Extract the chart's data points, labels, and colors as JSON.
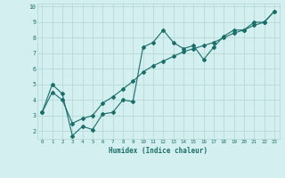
{
  "xlabel": "Humidex (Indice chaleur)",
  "background_color": "#d4efef",
  "grid_color": "#b8d8d8",
  "line_color": "#1a6e6a",
  "xlim": [
    -0.5,
    23.5
  ],
  "ylim": [
    1.5,
    10.2
  ],
  "yticks": [
    2,
    3,
    4,
    5,
    6,
    7,
    8,
    9,
    10
  ],
  "xticks": [
    0,
    1,
    2,
    3,
    4,
    5,
    6,
    7,
    8,
    9,
    10,
    11,
    12,
    13,
    14,
    15,
    16,
    17,
    18,
    19,
    20,
    21,
    22,
    23
  ],
  "line1_x": [
    0,
    1,
    2,
    3,
    4,
    5,
    6,
    7,
    8,
    9,
    10,
    11,
    12,
    13,
    14,
    15,
    16,
    17,
    18,
    19,
    20,
    21,
    22,
    23
  ],
  "line1_y": [
    3.2,
    5.0,
    4.4,
    1.7,
    2.3,
    2.1,
    3.1,
    3.2,
    4.0,
    3.9,
    7.4,
    7.7,
    8.5,
    7.7,
    7.3,
    7.5,
    6.6,
    7.4,
    8.1,
    8.5,
    8.5,
    9.0,
    9.0,
    9.7
  ],
  "line2_x": [
    0,
    1,
    2,
    3,
    4,
    5,
    6,
    7,
    8,
    9,
    10,
    11,
    12,
    13,
    14,
    15,
    16,
    17,
    18,
    19,
    20,
    21,
    22,
    23
  ],
  "line2_y": [
    3.2,
    4.5,
    4.0,
    2.5,
    2.8,
    3.0,
    3.8,
    4.2,
    4.7,
    5.2,
    5.8,
    6.2,
    6.5,
    6.8,
    7.1,
    7.3,
    7.5,
    7.7,
    8.0,
    8.3,
    8.5,
    8.8,
    9.0,
    9.7
  ]
}
